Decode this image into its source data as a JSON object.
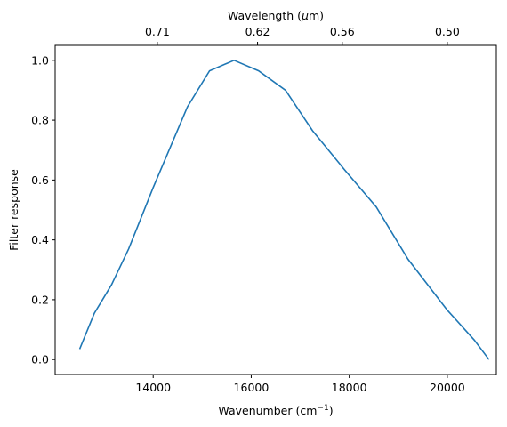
{
  "chart_data": {
    "type": "line",
    "xlabel": "Wavenumber (cm",
    "xlabel_sup": "−1",
    "xlabel_tail": ")",
    "ylabel": "Filter response",
    "top_xlabel": "Wavelength (",
    "top_xlabel_mu": "μ",
    "top_xlabel_tail": "m)",
    "xlim": [
      12000,
      21000
    ],
    "ylim": [
      -0.05,
      1.05
    ],
    "grid": false,
    "x_ticks": [
      14000,
      16000,
      18000,
      20000
    ],
    "x_tick_labels": [
      "14000",
      "16000",
      "18000",
      "20000"
    ],
    "y_ticks": [
      0.0,
      0.2,
      0.4,
      0.6,
      0.8,
      1.0
    ],
    "y_tick_labels": [
      "0.0",
      "0.2",
      "0.4",
      "0.6",
      "0.8",
      "1.0"
    ],
    "top_ticks": [
      0.71,
      0.62,
      0.56,
      0.5
    ],
    "top_tick_labels": [
      "0.71",
      "0.62",
      "0.56",
      "0.50"
    ],
    "line_color": "#1f77b4",
    "series": [
      {
        "x": [
          12500,
          12800,
          13150,
          13500,
          14000,
          14700,
          15150,
          15650,
          16150,
          16700,
          17250,
          17900,
          18550,
          19200,
          20000,
          20550,
          20850
        ],
        "y": [
          0.035,
          0.155,
          0.25,
          0.37,
          0.575,
          0.845,
          0.965,
          1.0,
          0.965,
          0.9,
          0.765,
          0.635,
          0.51,
          0.335,
          0.165,
          0.065,
          0.0
        ]
      }
    ]
  }
}
